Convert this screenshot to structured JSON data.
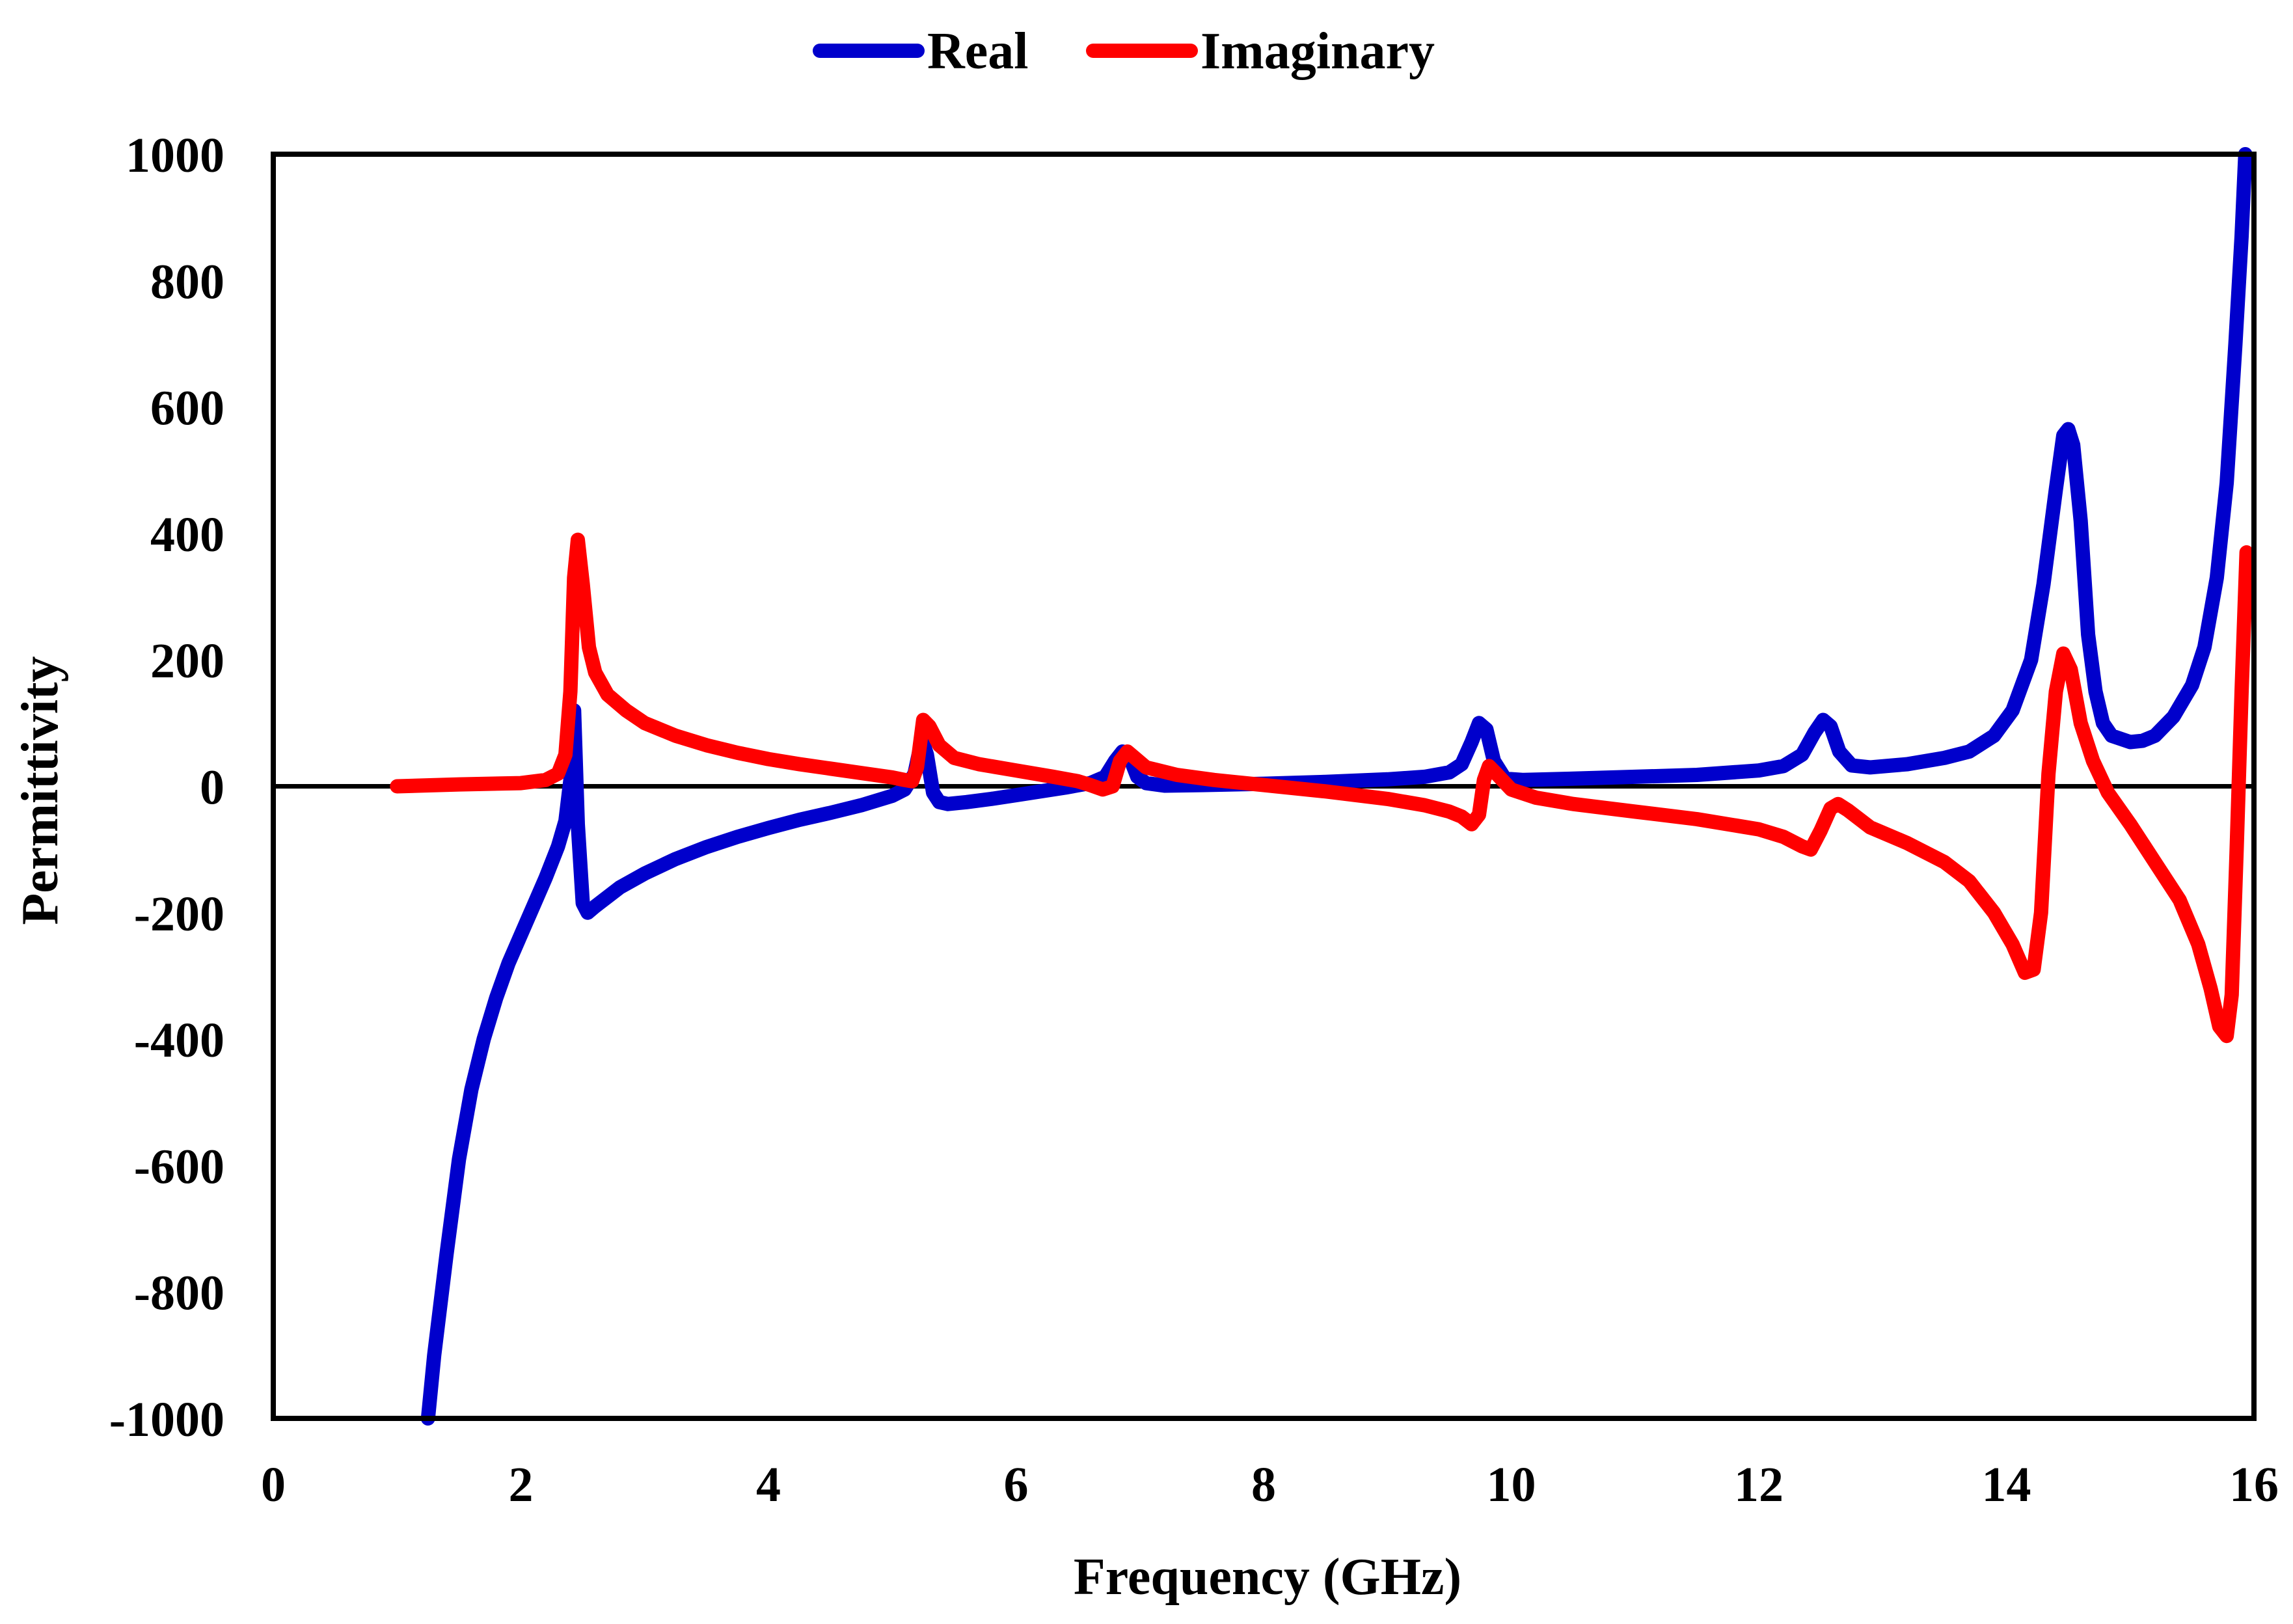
{
  "chart_data": {
    "type": "line",
    "title": "",
    "xlabel": "Frequency (GHz)",
    "ylabel": "Permittivity",
    "xlim": [
      0,
      16
    ],
    "ylim": [
      -1000,
      1000
    ],
    "xticks": [
      0,
      2,
      4,
      6,
      8,
      10,
      12,
      14,
      16
    ],
    "yticks": [
      -1000,
      -800,
      -600,
      -400,
      -200,
      0,
      200,
      400,
      600,
      800,
      1000
    ],
    "grid": false,
    "zero_line": true,
    "legend_position": "top-center",
    "series": [
      {
        "name": "Real",
        "color": "#0000cc",
        "points": [
          [
            1.25,
            -1000
          ],
          [
            1.3,
            -900
          ],
          [
            1.4,
            -740
          ],
          [
            1.5,
            -590
          ],
          [
            1.6,
            -480
          ],
          [
            1.7,
            -400
          ],
          [
            1.8,
            -335
          ],
          [
            1.9,
            -280
          ],
          [
            2.0,
            -235
          ],
          [
            2.1,
            -190
          ],
          [
            2.2,
            -145
          ],
          [
            2.3,
            -95
          ],
          [
            2.36,
            -55
          ],
          [
            2.4,
            10
          ],
          [
            2.43,
            120
          ],
          [
            2.46,
            -60
          ],
          [
            2.5,
            -185
          ],
          [
            2.54,
            -200
          ],
          [
            2.6,
            -190
          ],
          [
            2.7,
            -175
          ],
          [
            2.8,
            -160
          ],
          [
            3.0,
            -138
          ],
          [
            3.25,
            -115
          ],
          [
            3.5,
            -96
          ],
          [
            3.75,
            -80
          ],
          [
            4.0,
            -66
          ],
          [
            4.25,
            -53
          ],
          [
            4.5,
            -42
          ],
          [
            4.75,
            -30
          ],
          [
            5.0,
            -15
          ],
          [
            5.1,
            -5
          ],
          [
            5.18,
            20
          ],
          [
            5.24,
            75
          ],
          [
            5.28,
            50
          ],
          [
            5.33,
            -10
          ],
          [
            5.38,
            -25
          ],
          [
            5.45,
            -28
          ],
          [
            5.6,
            -25
          ],
          [
            5.8,
            -20
          ],
          [
            6.0,
            -14
          ],
          [
            6.2,
            -8
          ],
          [
            6.4,
            -2
          ],
          [
            6.6,
            5
          ],
          [
            6.72,
            15
          ],
          [
            6.8,
            40
          ],
          [
            6.86,
            55
          ],
          [
            6.92,
            45
          ],
          [
            6.98,
            15
          ],
          [
            7.05,
            5
          ],
          [
            7.2,
            1
          ],
          [
            7.5,
            2
          ],
          [
            8.0,
            4
          ],
          [
            8.5,
            7
          ],
          [
            9.0,
            11
          ],
          [
            9.3,
            15
          ],
          [
            9.5,
            22
          ],
          [
            9.6,
            35
          ],
          [
            9.68,
            70
          ],
          [
            9.74,
            100
          ],
          [
            9.8,
            90
          ],
          [
            9.86,
            40
          ],
          [
            9.95,
            12
          ],
          [
            10.1,
            10
          ],
          [
            10.5,
            12
          ],
          [
            11.0,
            15
          ],
          [
            11.5,
            18
          ],
          [
            12.0,
            25
          ],
          [
            12.2,
            32
          ],
          [
            12.35,
            50
          ],
          [
            12.45,
            85
          ],
          [
            12.52,
            105
          ],
          [
            12.58,
            95
          ],
          [
            12.65,
            55
          ],
          [
            12.75,
            33
          ],
          [
            12.9,
            30
          ],
          [
            13.2,
            35
          ],
          [
            13.5,
            45
          ],
          [
            13.7,
            55
          ],
          [
            13.9,
            80
          ],
          [
            14.05,
            120
          ],
          [
            14.2,
            200
          ],
          [
            14.3,
            320
          ],
          [
            14.4,
            470
          ],
          [
            14.46,
            555
          ],
          [
            14.5,
            565
          ],
          [
            14.54,
            540
          ],
          [
            14.6,
            420
          ],
          [
            14.66,
            240
          ],
          [
            14.72,
            150
          ],
          [
            14.78,
            100
          ],
          [
            14.85,
            80
          ],
          [
            15.0,
            70
          ],
          [
            15.1,
            72
          ],
          [
            15.2,
            80
          ],
          [
            15.35,
            110
          ],
          [
            15.5,
            160
          ],
          [
            15.6,
            220
          ],
          [
            15.7,
            330
          ],
          [
            15.78,
            480
          ],
          [
            15.85,
            700
          ],
          [
            15.9,
            870
          ],
          [
            15.93,
            1000
          ]
        ]
      },
      {
        "name": "Imaginary",
        "color": "#ff0000",
        "points": [
          [
            1.0,
            0
          ],
          [
            1.5,
            3
          ],
          [
            2.0,
            5
          ],
          [
            2.2,
            10
          ],
          [
            2.3,
            20
          ],
          [
            2.36,
            50
          ],
          [
            2.4,
            150
          ],
          [
            2.43,
            330
          ],
          [
            2.46,
            390
          ],
          [
            2.5,
            320
          ],
          [
            2.55,
            220
          ],
          [
            2.6,
            180
          ],
          [
            2.7,
            145
          ],
          [
            2.85,
            120
          ],
          [
            3.0,
            100
          ],
          [
            3.25,
            80
          ],
          [
            3.5,
            65
          ],
          [
            3.75,
            53
          ],
          [
            4.0,
            43
          ],
          [
            4.25,
            35
          ],
          [
            4.5,
            28
          ],
          [
            4.75,
            21
          ],
          [
            5.0,
            14
          ],
          [
            5.1,
            10
          ],
          [
            5.16,
            8
          ],
          [
            5.2,
            30
          ],
          [
            5.25,
            105
          ],
          [
            5.3,
            95
          ],
          [
            5.38,
            65
          ],
          [
            5.5,
            45
          ],
          [
            5.7,
            35
          ],
          [
            6.0,
            25
          ],
          [
            6.3,
            15
          ],
          [
            6.5,
            8
          ],
          [
            6.6,
            2
          ],
          [
            6.7,
            -5
          ],
          [
            6.78,
            0
          ],
          [
            6.84,
            40
          ],
          [
            6.9,
            55
          ],
          [
            6.96,
            45
          ],
          [
            7.05,
            30
          ],
          [
            7.3,
            18
          ],
          [
            7.6,
            10
          ],
          [
            8.0,
            2
          ],
          [
            8.5,
            -8
          ],
          [
            9.0,
            -20
          ],
          [
            9.3,
            -30
          ],
          [
            9.5,
            -40
          ],
          [
            9.6,
            -48
          ],
          [
            9.68,
            -60
          ],
          [
            9.74,
            -45
          ],
          [
            9.78,
            10
          ],
          [
            9.82,
            32
          ],
          [
            9.88,
            20
          ],
          [
            10.0,
            -5
          ],
          [
            10.2,
            -18
          ],
          [
            10.5,
            -28
          ],
          [
            11.0,
            -40
          ],
          [
            11.5,
            -52
          ],
          [
            12.0,
            -68
          ],
          [
            12.2,
            -80
          ],
          [
            12.35,
            -95
          ],
          [
            12.42,
            -100
          ],
          [
            12.5,
            -70
          ],
          [
            12.58,
            -35
          ],
          [
            12.64,
            -28
          ],
          [
            12.72,
            -38
          ],
          [
            12.9,
            -65
          ],
          [
            13.2,
            -90
          ],
          [
            13.5,
            -120
          ],
          [
            13.7,
            -150
          ],
          [
            13.9,
            -200
          ],
          [
            14.05,
            -250
          ],
          [
            14.15,
            -295
          ],
          [
            14.22,
            -290
          ],
          [
            14.28,
            -200
          ],
          [
            14.34,
            20
          ],
          [
            14.4,
            150
          ],
          [
            14.46,
            210
          ],
          [
            14.52,
            185
          ],
          [
            14.6,
            100
          ],
          [
            14.7,
            40
          ],
          [
            14.82,
            -10
          ],
          [
            15.0,
            -60
          ],
          [
            15.2,
            -120
          ],
          [
            15.4,
            -180
          ],
          [
            15.55,
            -250
          ],
          [
            15.65,
            -320
          ],
          [
            15.72,
            -380
          ],
          [
            15.78,
            -395
          ],
          [
            15.82,
            -330
          ],
          [
            15.86,
            -100
          ],
          [
            15.9,
            150
          ],
          [
            15.94,
            370
          ]
        ]
      }
    ]
  }
}
